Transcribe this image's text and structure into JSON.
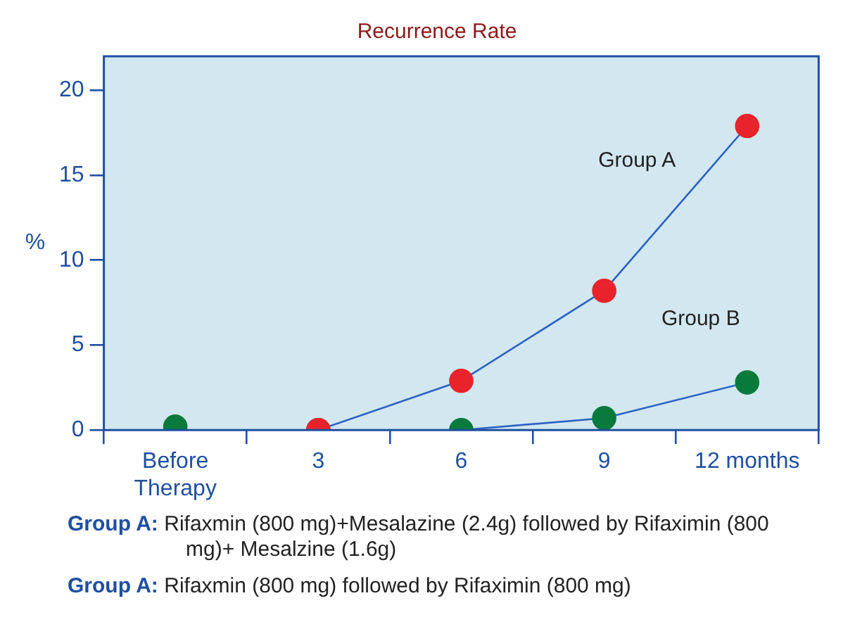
{
  "chart_data": {
    "type": "line",
    "title": "Recurrence Rate",
    "ylabel": "%",
    "categories": [
      "Before\nTherapy",
      "3",
      "6",
      "9",
      "12 months"
    ],
    "series": [
      {
        "name": "Group A",
        "color": "#e8232b",
        "values": [
          null,
          0,
          2.9,
          8.2,
          17.9
        ]
      },
      {
        "name": "Group B",
        "color": "#0a7a3c",
        "values": [
          null,
          0,
          0,
          0.7,
          2.8
        ]
      },
      {
        "type": "scatter",
        "color": "#0a7a3c",
        "values": [
          0.2,
          null,
          null,
          null,
          null
        ]
      }
    ],
    "ylim": [
      0,
      22
    ],
    "yticks": [
      0,
      5,
      10,
      15,
      20
    ],
    "grid": false,
    "legend": false,
    "marker": "circle",
    "line_style": "solid",
    "annotations": [
      "Group A: Rifaxmin (800 mg)+Mesalazine (2.4g) followed by Rifaximin (800 mg)+ Mesalzine (1.6g)",
      "Group A: Rifaxmin (800 mg) followed by Rifaximin (800 mg)"
    ]
  }
}
